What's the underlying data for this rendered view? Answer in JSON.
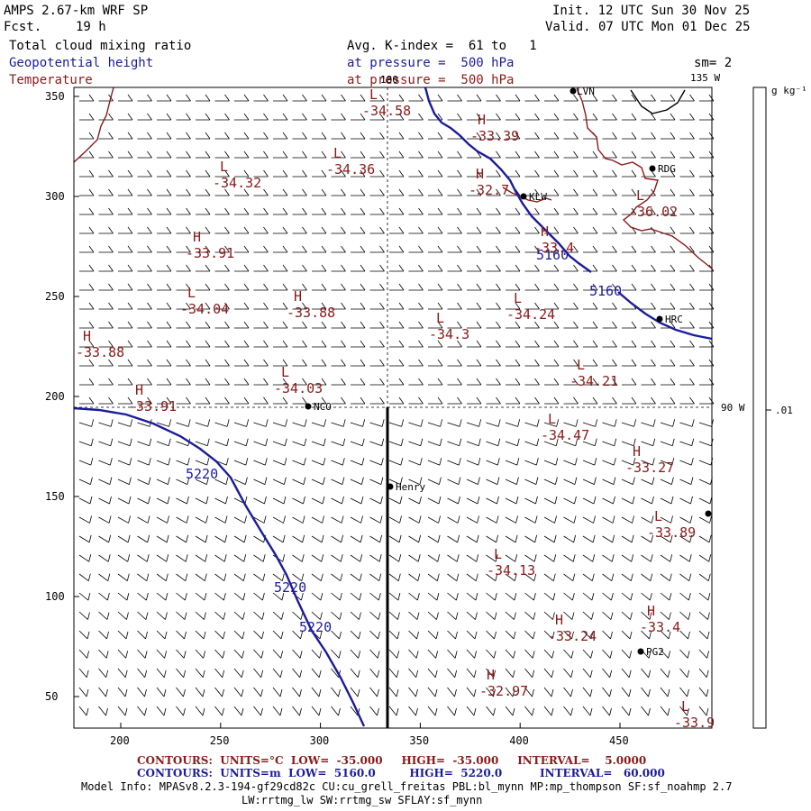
{
  "header": {
    "model": "AMPS 2.67-km WRF SP",
    "fcst_label": "Fcst.",
    "fcst_value": "19 h",
    "init": "Init. 12 UTC Sun 30 Nov 25",
    "valid": "Valid. 07 UTC Mon 01 Dec 25",
    "field1": "Total cloud mixing ratio",
    "field2": "Geopotential height",
    "field3": "Temperature",
    "avg": "Avg. K-index =  61 to   1",
    "pressure1": "at pressure =  500 hPa",
    "pressure2": "at pressure =  500 hPa",
    "sm": "sm= 2"
  },
  "colors": {
    "height_contour": "#1c1c9c",
    "temperature": "#8b1a1a",
    "coast": "#8b1a1a",
    "barb": "#000000"
  },
  "map": {
    "x_ticks": [
      "200",
      "250",
      "300",
      "350",
      "400",
      "450"
    ],
    "y_ticks": [
      "350",
      "300",
      "250",
      "200",
      "150",
      "100",
      "50"
    ],
    "meridian_label": "180",
    "meridian_135": "135 W",
    "meridian_90": "90 W",
    "stations": [
      {
        "name": "LVN"
      },
      {
        "name": "RDG"
      },
      {
        "name": "KLW"
      },
      {
        "name": "HRC"
      },
      {
        "name": "NCO"
      },
      {
        "name": "Henry"
      },
      {
        "name": "PG2"
      },
      {
        "name": ""
      }
    ],
    "height_labels": [
      "5160",
      "5160",
      "5220",
      "5220",
      "5220"
    ],
    "temp_extrema": [
      {
        "kind": "L",
        "value": "-34.58"
      },
      {
        "kind": "H",
        "value": "-33.39"
      },
      {
        "kind": "L",
        "value": "-34.36"
      },
      {
        "kind": "L",
        "value": "-34.32"
      },
      {
        "kind": "H",
        "value": "-32.7"
      },
      {
        "kind": "L",
        "value": "-36.02"
      },
      {
        "kind": "H",
        "value": "-33.91"
      },
      {
        "kind": "H",
        "value": "-33.4"
      },
      {
        "kind": "L",
        "value": "-34.04"
      },
      {
        "kind": "H",
        "value": "-33.88"
      },
      {
        "kind": "L",
        "value": "-34.24"
      },
      {
        "kind": "L",
        "value": "-34.3"
      },
      {
        "kind": "H",
        "value": "-33.88"
      },
      {
        "kind": "L",
        "value": "-34.21"
      },
      {
        "kind": "L",
        "value": "-34.03"
      },
      {
        "kind": "H",
        "value": "-33.91"
      },
      {
        "kind": "L",
        "value": "-34.47"
      },
      {
        "kind": "H",
        "value": "-33.27"
      },
      {
        "kind": "L",
        "value": "-33.89"
      },
      {
        "kind": "L",
        "value": "-34.13"
      },
      {
        "kind": "H",
        "value": "-33.24"
      },
      {
        "kind": "H",
        "value": "-33.4"
      },
      {
        "kind": "H",
        "value": "-32.97"
      },
      {
        "kind": "L",
        "value": "-33.9"
      }
    ]
  },
  "colorbar": {
    "units": "g kg⁻¹",
    "tick": ".01"
  },
  "footer": {
    "row1": {
      "label": "CONTOURS:",
      "units": "UNITS=°C",
      "low": "LOW=  -35.000",
      "high": "HIGH=  -35.000",
      "interval": "INTERVAL=    5.0000"
    },
    "row2": {
      "label": "CONTOURS:",
      "units": "UNITS=m",
      "low": "LOW=  5160.0",
      "high": "HIGH=  5220.0",
      "interval": "INTERVAL=   60.000"
    },
    "model_info": "Model Info: MPASv8.2.3-194-gf29cd82c CU:cu_grell_freitas PBL:bl_mynn MP:mp_thompson SF:sf_noahmp 2.7",
    "model_info2": "LW:rrtmg_lw SW:rrtmg_sw SFLAY:sf_mynn"
  }
}
